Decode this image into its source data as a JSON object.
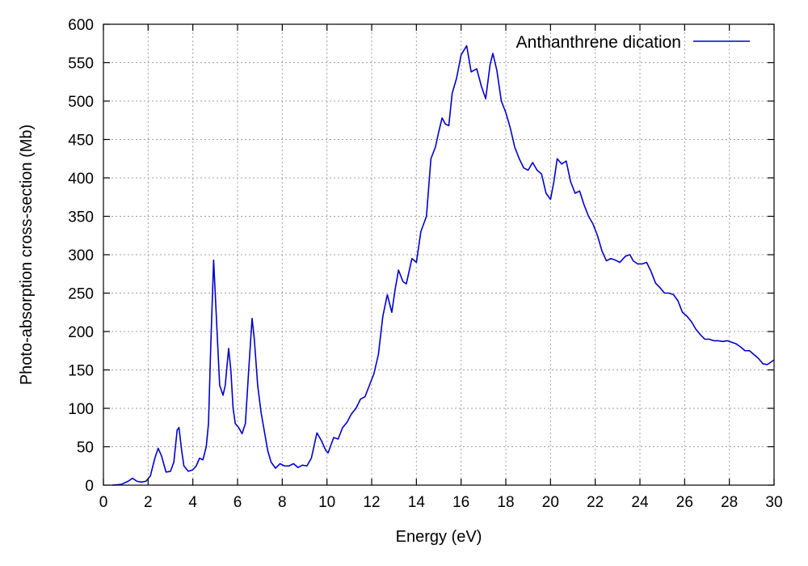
{
  "chart_data": {
    "type": "line",
    "title": "",
    "xlabel": "Energy (eV)",
    "ylabel": "Photo-absorption cross-section (Mb)",
    "xlim": [
      0,
      30
    ],
    "ylim": [
      0,
      600
    ],
    "x_ticks": [
      0,
      2,
      4,
      6,
      8,
      10,
      12,
      14,
      16,
      18,
      20,
      22,
      24,
      26,
      28,
      30
    ],
    "y_ticks": [
      0,
      50,
      100,
      150,
      200,
      250,
      300,
      350,
      400,
      450,
      500,
      550,
      600
    ],
    "grid": true,
    "legend_position": "top-right",
    "series": [
      {
        "name": "Anthanthrene dication",
        "color": "#0000cc",
        "points": [
          [
            0.4,
            0
          ],
          [
            0.8,
            1
          ],
          [
            1.1,
            5
          ],
          [
            1.3,
            9
          ],
          [
            1.5,
            5
          ],
          [
            1.7,
            4
          ],
          [
            1.9,
            5
          ],
          [
            2.1,
            12
          ],
          [
            2.3,
            35
          ],
          [
            2.45,
            48
          ],
          [
            2.6,
            38
          ],
          [
            2.8,
            17
          ],
          [
            3.0,
            18
          ],
          [
            3.15,
            30
          ],
          [
            3.3,
            72
          ],
          [
            3.38,
            75
          ],
          [
            3.5,
            45
          ],
          [
            3.6,
            25
          ],
          [
            3.8,
            18
          ],
          [
            4.0,
            20
          ],
          [
            4.15,
            25
          ],
          [
            4.3,
            35
          ],
          [
            4.45,
            33
          ],
          [
            4.6,
            50
          ],
          [
            4.7,
            80
          ],
          [
            4.8,
            180
          ],
          [
            4.93,
            293
          ],
          [
            5.05,
            220
          ],
          [
            5.2,
            130
          ],
          [
            5.35,
            117
          ],
          [
            5.45,
            130
          ],
          [
            5.6,
            178
          ],
          [
            5.7,
            150
          ],
          [
            5.8,
            100
          ],
          [
            5.9,
            80
          ],
          [
            6.05,
            75
          ],
          [
            6.2,
            67
          ],
          [
            6.35,
            80
          ],
          [
            6.5,
            150
          ],
          [
            6.65,
            217
          ],
          [
            6.75,
            190
          ],
          [
            6.9,
            130
          ],
          [
            7.05,
            95
          ],
          [
            7.2,
            70
          ],
          [
            7.35,
            45
          ],
          [
            7.5,
            30
          ],
          [
            7.7,
            22
          ],
          [
            7.9,
            28
          ],
          [
            8.1,
            25
          ],
          [
            8.3,
            25
          ],
          [
            8.5,
            28
          ],
          [
            8.7,
            23
          ],
          [
            8.9,
            26
          ],
          [
            9.1,
            25
          ],
          [
            9.3,
            35
          ],
          [
            9.55,
            68
          ],
          [
            9.75,
            58
          ],
          [
            9.95,
            45
          ],
          [
            10.05,
            42
          ],
          [
            10.3,
            62
          ],
          [
            10.5,
            60
          ],
          [
            10.7,
            75
          ],
          [
            10.9,
            82
          ],
          [
            11.1,
            93
          ],
          [
            11.3,
            100
          ],
          [
            11.5,
            112
          ],
          [
            11.7,
            115
          ],
          [
            11.9,
            130
          ],
          [
            12.1,
            145
          ],
          [
            12.3,
            170
          ],
          [
            12.5,
            220
          ],
          [
            12.7,
            248
          ],
          [
            12.9,
            225
          ],
          [
            13.05,
            255
          ],
          [
            13.2,
            280
          ],
          [
            13.4,
            265
          ],
          [
            13.55,
            262
          ],
          [
            13.8,
            295
          ],
          [
            14.0,
            290
          ],
          [
            14.2,
            330
          ],
          [
            14.45,
            350
          ],
          [
            14.65,
            425
          ],
          [
            14.85,
            440
          ],
          [
            15.0,
            460
          ],
          [
            15.15,
            478
          ],
          [
            15.3,
            470
          ],
          [
            15.45,
            468
          ],
          [
            15.6,
            510
          ],
          [
            15.8,
            530
          ],
          [
            16.0,
            560
          ],
          [
            16.25,
            572
          ],
          [
            16.45,
            538
          ],
          [
            16.7,
            542
          ],
          [
            16.9,
            520
          ],
          [
            17.1,
            503
          ],
          [
            17.3,
            548
          ],
          [
            17.42,
            562
          ],
          [
            17.6,
            540
          ],
          [
            17.8,
            500
          ],
          [
            18.0,
            485
          ],
          [
            18.2,
            465
          ],
          [
            18.4,
            440
          ],
          [
            18.6,
            425
          ],
          [
            18.8,
            413
          ],
          [
            19.0,
            410
          ],
          [
            19.2,
            420
          ],
          [
            19.4,
            410
          ],
          [
            19.6,
            405
          ],
          [
            19.8,
            380
          ],
          [
            20.0,
            372
          ],
          [
            20.15,
            395
          ],
          [
            20.3,
            425
          ],
          [
            20.5,
            418
          ],
          [
            20.7,
            422
          ],
          [
            20.9,
            395
          ],
          [
            21.1,
            380
          ],
          [
            21.3,
            383
          ],
          [
            21.5,
            365
          ],
          [
            21.7,
            350
          ],
          [
            21.9,
            340
          ],
          [
            22.1,
            325
          ],
          [
            22.3,
            305
          ],
          [
            22.5,
            292
          ],
          [
            22.7,
            295
          ],
          [
            22.9,
            293
          ],
          [
            23.1,
            290
          ],
          [
            23.35,
            298
          ],
          [
            23.55,
            300
          ],
          [
            23.7,
            292
          ],
          [
            23.9,
            288
          ],
          [
            24.1,
            288
          ],
          [
            24.3,
            290
          ],
          [
            24.5,
            278
          ],
          [
            24.7,
            263
          ],
          [
            24.9,
            257
          ],
          [
            25.1,
            250
          ],
          [
            25.3,
            250
          ],
          [
            25.5,
            248
          ],
          [
            25.7,
            240
          ],
          [
            25.9,
            225
          ],
          [
            26.1,
            220
          ],
          [
            26.3,
            213
          ],
          [
            26.5,
            203
          ],
          [
            26.7,
            196
          ],
          [
            26.9,
            190
          ],
          [
            27.1,
            190
          ],
          [
            27.3,
            188
          ],
          [
            27.5,
            188
          ],
          [
            27.7,
            187
          ],
          [
            27.9,
            188
          ],
          [
            28.1,
            186
          ],
          [
            28.3,
            184
          ],
          [
            28.5,
            180
          ],
          [
            28.7,
            175
          ],
          [
            28.9,
            175
          ],
          [
            29.1,
            170
          ],
          [
            29.3,
            165
          ],
          [
            29.5,
            158
          ],
          [
            29.7,
            157
          ],
          [
            29.85,
            160
          ],
          [
            30.0,
            163
          ]
        ]
      }
    ]
  }
}
